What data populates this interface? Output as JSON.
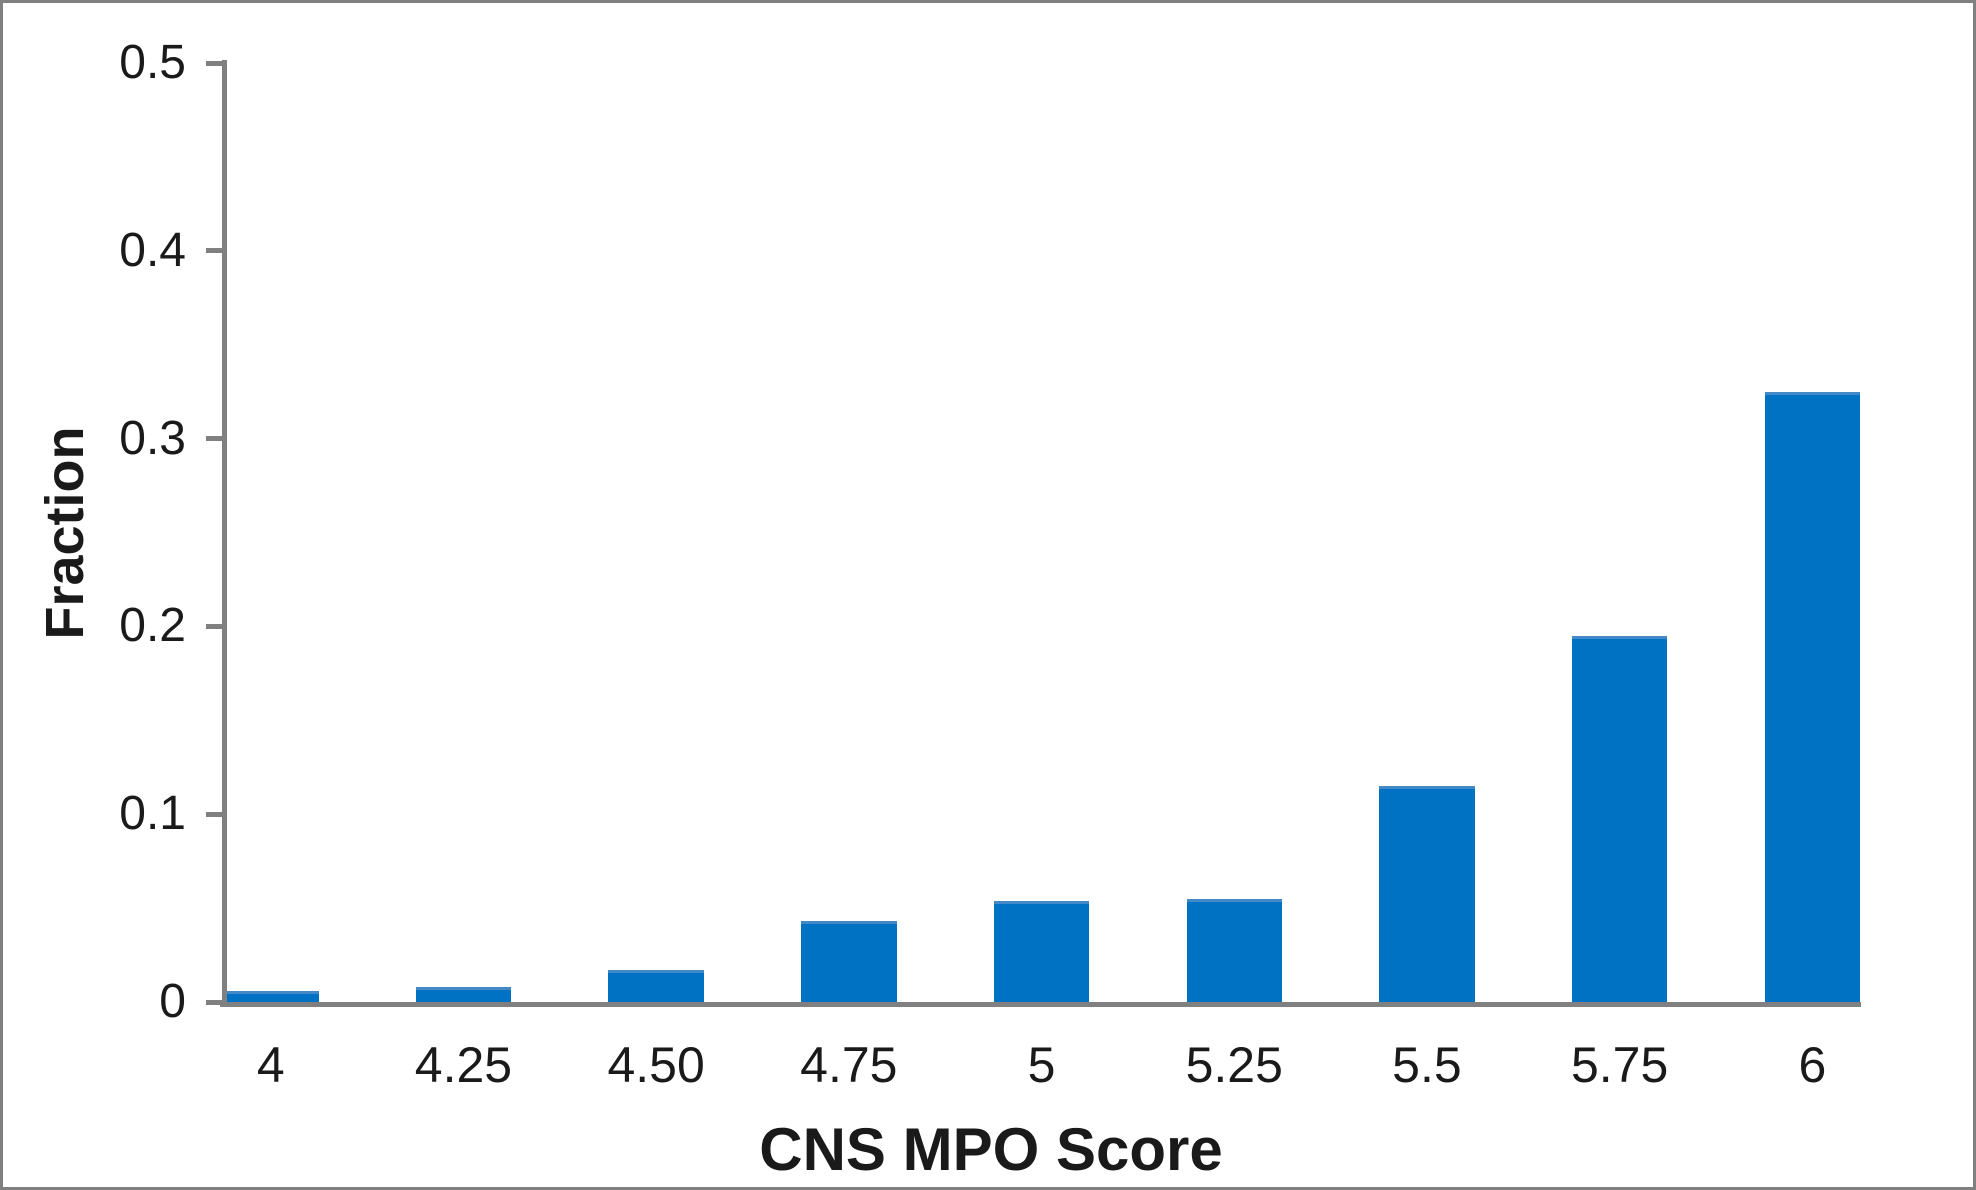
{
  "window": {
    "background_color": "#ffffff",
    "frame_border_color": "#808080"
  },
  "chart_data": {
    "type": "bar",
    "title": "",
    "xlabel": "CNS MPO Score",
    "ylabel": "Fraction",
    "categories": [
      "4",
      "4.25",
      "4.50",
      "4.75",
      "5",
      "5.25",
      "5.5",
      "5.75",
      "6"
    ],
    "values": [
      0.006,
      0.008,
      0.017,
      0.043,
      0.054,
      0.055,
      0.115,
      0.195,
      0.325
    ],
    "ylim": [
      0,
      0.5
    ],
    "yticks": [
      0,
      0.1,
      0.2,
      0.3,
      0.4,
      0.5
    ],
    "ytick_labels": [
      "0",
      "0.1",
      "0.2",
      "0.3",
      "0.4",
      "0.5"
    ],
    "grid": false,
    "legend": "none",
    "bar_color": "#0072C3",
    "bar_top_edge_color": "#4389C8",
    "axis_color": "#808080",
    "text_color": "#1a1a1a"
  }
}
